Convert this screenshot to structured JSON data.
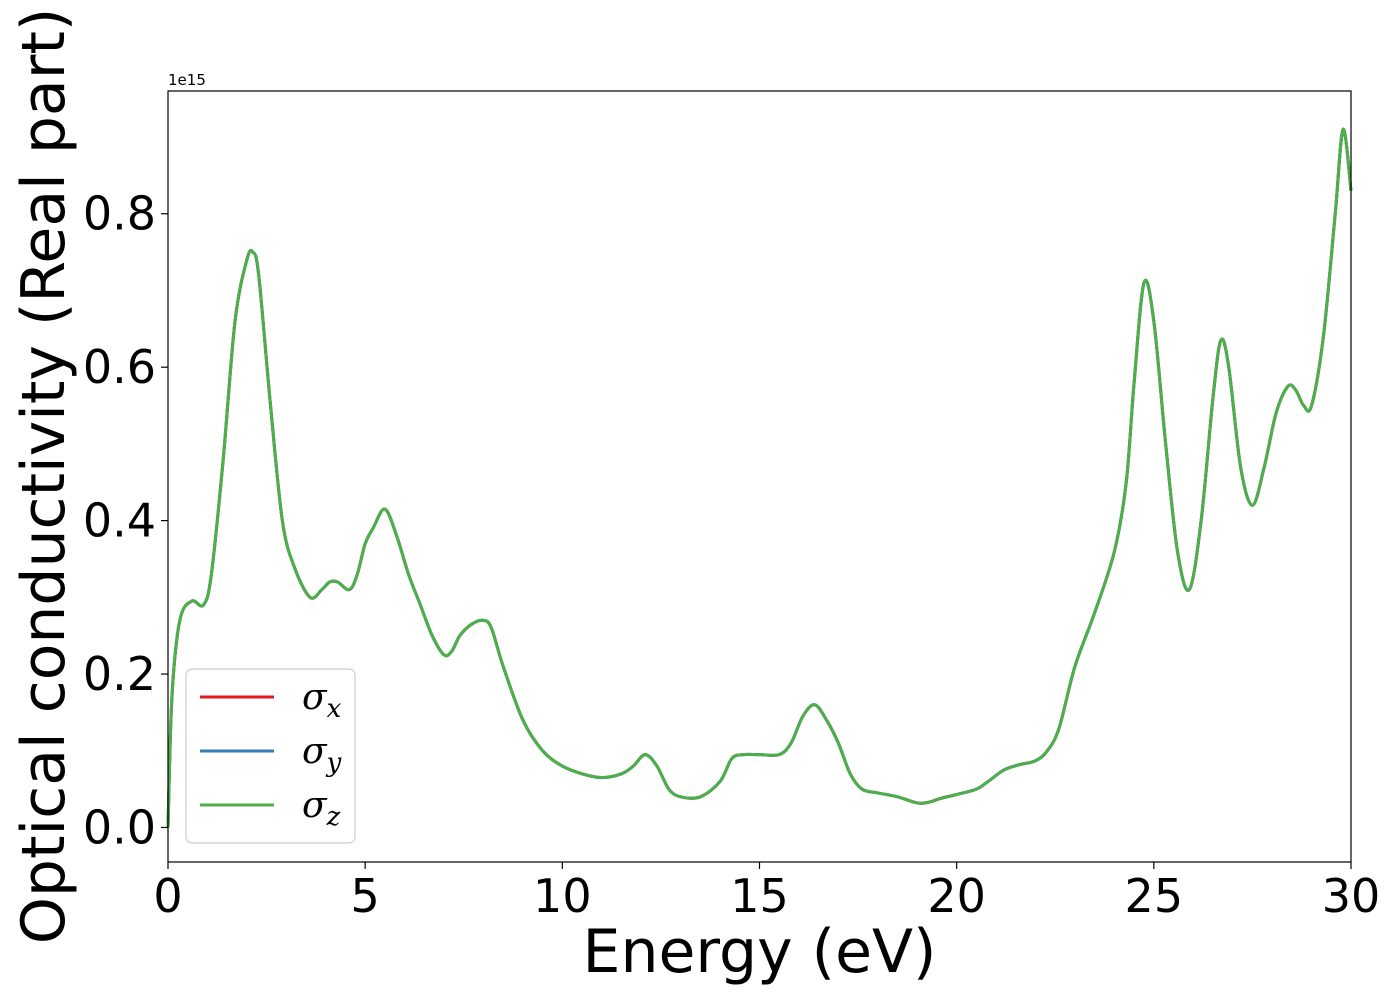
{
  "chart_data": {
    "type": "line",
    "xlabel": "Energy (eV)",
    "ylabel": "Optical conductivity (Real part)",
    "y_offset_text": "1e15",
    "y_scale_factor": 1000000000000000.0,
    "xlim": [
      0,
      30
    ],
    "ylim": [
      -0.045,
      0.96
    ],
    "xticks": [
      0,
      5,
      10,
      15,
      20,
      25,
      30
    ],
    "xtick_labels": [
      "0",
      "5",
      "10",
      "15",
      "20",
      "25",
      "30"
    ],
    "yticks": [
      0.0,
      0.2,
      0.4,
      0.6,
      0.8
    ],
    "ytick_labels": [
      "0.0",
      "0.2",
      "0.4",
      "0.6",
      "0.8"
    ],
    "grid": false,
    "legend_position": "lower-left",
    "series": [
      {
        "name": "σx",
        "symbol": "σ",
        "subscript": "x",
        "color": "#e41a1c",
        "data_ref": "shared"
      },
      {
        "name": "σy",
        "symbol": "σ",
        "subscript": "y",
        "color": "#377eb8",
        "data_ref": "shared"
      },
      {
        "name": "σz",
        "symbol": "σ",
        "subscript": "z",
        "color": "#4daf4a",
        "data_ref": "shared"
      }
    ],
    "shared_data": {
      "x": [
        0,
        0.1,
        0.3,
        0.6,
        0.9,
        1.1,
        1.4,
        1.7,
        2.0,
        2.15,
        2.3,
        2.6,
        2.9,
        3.2,
        3.6,
        3.9,
        4.1,
        4.3,
        4.6,
        4.8,
        5.0,
        5.2,
        5.5,
        5.8,
        6.1,
        6.4,
        6.7,
        7.0,
        7.2,
        7.4,
        7.7,
        8.0,
        8.2,
        8.5,
        9.0,
        9.5,
        10.0,
        10.5,
        11.0,
        11.5,
        11.8,
        12.1,
        12.4,
        12.7,
        13.0,
        13.5,
        14.0,
        14.3,
        14.6,
        15.0,
        15.5,
        15.8,
        16.1,
        16.4,
        16.7,
        17.0,
        17.3,
        17.6,
        18.0,
        18.5,
        19.0,
        19.3,
        19.6,
        20.0,
        20.5,
        20.8,
        21.2,
        21.6,
        22.0,
        22.3,
        22.6,
        23.0,
        23.5,
        24.0,
        24.3,
        24.5,
        24.75,
        25.0,
        25.3,
        25.6,
        25.9,
        26.2,
        26.5,
        26.7,
        26.9,
        27.2,
        27.5,
        27.8,
        28.1,
        28.4,
        28.6,
        28.8,
        29.0,
        29.3,
        29.6,
        29.8,
        30.0
      ],
      "y": [
        0.0,
        0.17,
        0.27,
        0.295,
        0.29,
        0.33,
        0.48,
        0.66,
        0.74,
        0.75,
        0.72,
        0.55,
        0.4,
        0.34,
        0.3,
        0.31,
        0.32,
        0.32,
        0.31,
        0.33,
        0.37,
        0.39,
        0.415,
        0.38,
        0.33,
        0.29,
        0.25,
        0.225,
        0.23,
        0.25,
        0.265,
        0.27,
        0.26,
        0.21,
        0.14,
        0.1,
        0.08,
        0.07,
        0.065,
        0.07,
        0.08,
        0.095,
        0.08,
        0.05,
        0.04,
        0.04,
        0.06,
        0.09,
        0.095,
        0.095,
        0.095,
        0.11,
        0.145,
        0.16,
        0.14,
        0.11,
        0.07,
        0.05,
        0.045,
        0.04,
        0.032,
        0.033,
        0.038,
        0.043,
        0.05,
        0.06,
        0.075,
        0.082,
        0.087,
        0.1,
        0.13,
        0.21,
        0.28,
        0.36,
        0.45,
        0.58,
        0.71,
        0.66,
        0.5,
        0.36,
        0.31,
        0.4,
        0.56,
        0.635,
        0.6,
        0.47,
        0.42,
        0.47,
        0.54,
        0.575,
        0.57,
        0.55,
        0.55,
        0.64,
        0.8,
        0.91,
        0.83
      ]
    }
  }
}
